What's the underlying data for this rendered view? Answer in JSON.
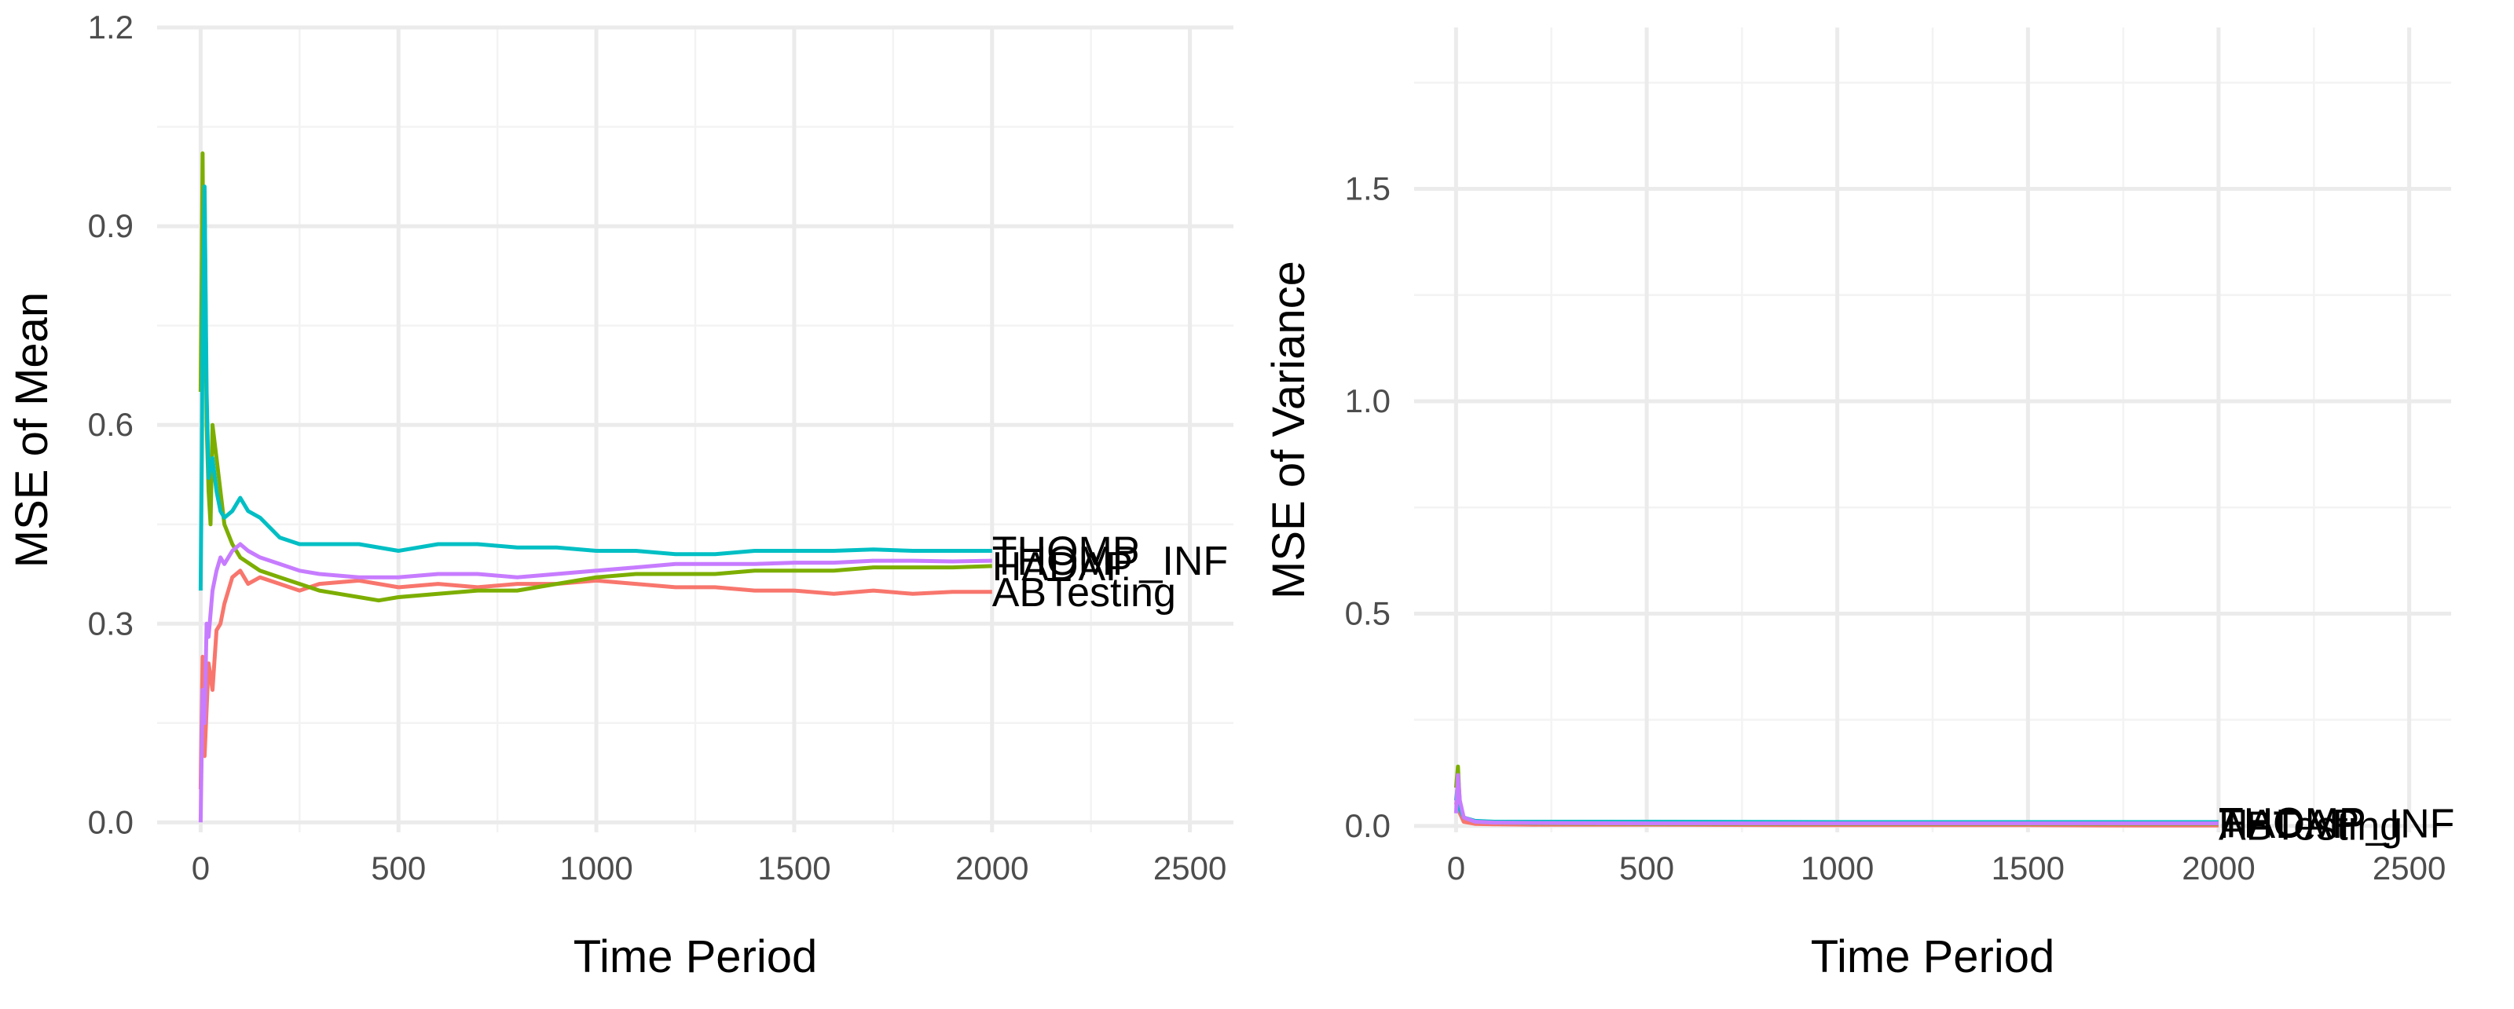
{
  "chart_data": [
    {
      "type": "line",
      "title": "",
      "xlabel": "Time Period",
      "ylabel": "MSE of Mean",
      "xlim": [
        -110,
        2610
      ],
      "ylim": [
        -0.015,
        1.2
      ],
      "x_ticks": [
        0,
        500,
        1000,
        1500,
        2000,
        2500
      ],
      "x_tick_labels": [
        "0",
        "500",
        "1000",
        "1500",
        "2000",
        "2500"
      ],
      "y_ticks": [
        0.0,
        0.3,
        0.6,
        0.9,
        1.2
      ],
      "y_tick_labels": [
        "0.0",
        "0.3",
        "0.6",
        "0.9",
        "1.2"
      ],
      "grid": true,
      "legend": "direct labels at line ends",
      "series": [
        {
          "name": "ABTesting",
          "color": "#F8766D",
          "x": [
            0,
            5,
            10,
            20,
            30,
            40,
            50,
            60,
            80,
            100,
            120,
            150,
            200,
            250,
            300,
            400,
            500,
            600,
            700,
            800,
            900,
            1000,
            1100,
            1200,
            1300,
            1400,
            1500,
            1600,
            1700,
            1800,
            1900,
            2000
          ],
          "y": [
            0.05,
            0.25,
            0.1,
            0.24,
            0.2,
            0.29,
            0.3,
            0.33,
            0.37,
            0.38,
            0.36,
            0.37,
            0.36,
            0.35,
            0.36,
            0.365,
            0.355,
            0.36,
            0.355,
            0.36,
            0.36,
            0.365,
            0.36,
            0.355,
            0.355,
            0.35,
            0.35,
            0.345,
            0.35,
            0.345,
            0.348,
            0.348
          ]
        },
        {
          "name": "HADAP",
          "color": "#7CAE00",
          "x": [
            0,
            3,
            5,
            8,
            10,
            15,
            20,
            25,
            30,
            40,
            50,
            60,
            80,
            100,
            150,
            200,
            250,
            300,
            350,
            400,
            450,
            500,
            600,
            700,
            800,
            900,
            1000,
            1100,
            1200,
            1300,
            1400,
            1500,
            1600,
            1700,
            1800,
            1900,
            2000
          ],
          "y": [
            0.65,
            0.85,
            1.01,
            0.7,
            0.95,
            0.6,
            0.5,
            0.45,
            0.6,
            0.55,
            0.5,
            0.45,
            0.42,
            0.4,
            0.38,
            0.37,
            0.36,
            0.35,
            0.345,
            0.34,
            0.335,
            0.34,
            0.345,
            0.35,
            0.35,
            0.36,
            0.37,
            0.375,
            0.375,
            0.375,
            0.38,
            0.38,
            0.38,
            0.385,
            0.385,
            0.385,
            0.387
          ]
        },
        {
          "name": "THOMP",
          "color": "#00BFC4",
          "x": [
            0,
            3,
            5,
            10,
            15,
            20,
            30,
            40,
            50,
            60,
            80,
            100,
            120,
            150,
            200,
            250,
            300,
            400,
            500,
            600,
            700,
            800,
            900,
            1000,
            1100,
            1200,
            1300,
            1400,
            1500,
            1600,
            1700,
            1800,
            1900,
            2000
          ],
          "y": [
            0.35,
            0.55,
            0.75,
            0.96,
            0.65,
            0.52,
            0.55,
            0.5,
            0.47,
            0.46,
            0.47,
            0.49,
            0.47,
            0.46,
            0.43,
            0.42,
            0.42,
            0.42,
            0.41,
            0.42,
            0.42,
            0.415,
            0.415,
            0.41,
            0.41,
            0.405,
            0.405,
            0.41,
            0.41,
            0.41,
            0.412,
            0.41,
            0.41,
            0.41
          ]
        },
        {
          "name": "THOMP_INF",
          "color": "#C77CFF",
          "x": [
            0,
            5,
            10,
            15,
            20,
            30,
            40,
            50,
            60,
            80,
            100,
            120,
            150,
            200,
            250,
            300,
            400,
            500,
            600,
            700,
            800,
            900,
            1000,
            1100,
            1200,
            1300,
            1400,
            1500,
            1600,
            1700,
            1800,
            1900,
            2000
          ],
          "y": [
            0.0,
            0.2,
            0.15,
            0.3,
            0.28,
            0.35,
            0.38,
            0.4,
            0.39,
            0.41,
            0.42,
            0.41,
            0.4,
            0.39,
            0.38,
            0.375,
            0.37,
            0.37,
            0.375,
            0.375,
            0.37,
            0.375,
            0.38,
            0.385,
            0.39,
            0.39,
            0.39,
            0.392,
            0.392,
            0.395,
            0.395,
            0.394,
            0.395
          ]
        }
      ]
    },
    {
      "type": "line",
      "title": "",
      "xlabel": "Time Period",
      "ylabel": "MSE of Variance",
      "xlim": [
        -110,
        2610
      ],
      "ylim": [
        -0.015,
        1.88
      ],
      "x_ticks": [
        0,
        500,
        1000,
        1500,
        2000,
        2500
      ],
      "x_tick_labels": [
        "0",
        "500",
        "1000",
        "1500",
        "2000",
        "2500"
      ],
      "y_ticks": [
        0.0,
        0.5,
        1.0,
        1.5
      ],
      "y_tick_labels": [
        "0.0",
        "0.5",
        "1.0",
        "1.5"
      ],
      "grid": true,
      "legend": "direct labels at line ends",
      "series": [
        {
          "name": "ABTesting",
          "color": "#F8766D",
          "x": [
            0,
            5,
            10,
            20,
            50,
            100,
            200,
            500,
            1000,
            1500,
            1800,
            2000
          ],
          "y": [
            0.05,
            0.08,
            0.03,
            0.01,
            0.005,
            0.004,
            0.003,
            0.003,
            0.002,
            0.002,
            0.001,
            0.001
          ]
        },
        {
          "name": "HADAP",
          "color": "#7CAE00",
          "x": [
            0,
            5,
            10,
            20,
            50,
            100,
            200,
            500,
            1000,
            1500,
            2000
          ],
          "y": [
            0.09,
            0.14,
            0.05,
            0.02,
            0.01,
            0.008,
            0.006,
            0.005,
            0.005,
            0.005,
            0.005
          ]
        },
        {
          "name": "THOMP",
          "color": "#00BFC4",
          "x": [
            0,
            5,
            10,
            20,
            50,
            100,
            200,
            500,
            1000,
            1500,
            2000
          ],
          "y": [
            0.06,
            0.1,
            0.04,
            0.02,
            0.012,
            0.01,
            0.01,
            0.01,
            0.009,
            0.009,
            0.009
          ]
        },
        {
          "name": "THOMP_INF",
          "color": "#C77CFF",
          "x": [
            0,
            5,
            10,
            20,
            50,
            100,
            200,
            500,
            1000,
            1500,
            2000
          ],
          "y": [
            0.03,
            0.12,
            0.06,
            0.02,
            0.01,
            0.008,
            0.007,
            0.006,
            0.006,
            0.006,
            0.006
          ]
        }
      ]
    }
  ]
}
